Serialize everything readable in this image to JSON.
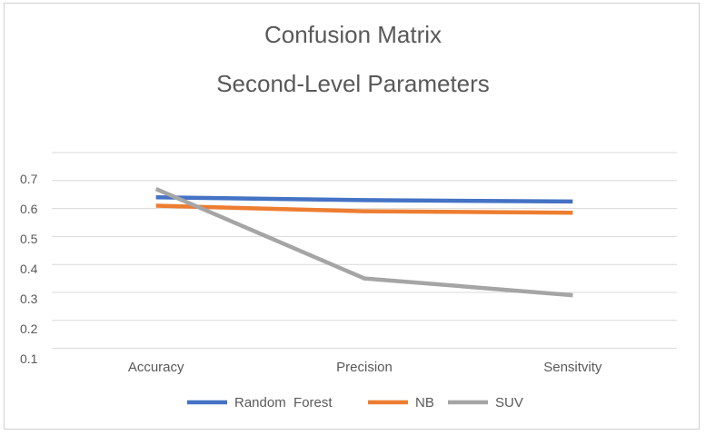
{
  "chart_data": {
    "type": "line",
    "title": "Confusion Matrix",
    "subtitle": "Second-Level Parameters",
    "categories": [
      "Accuracy",
      "Precision",
      "Sensitvity"
    ],
    "y_ticks": [
      "0.1",
      "0.2",
      "0.3",
      "0.4",
      "0.5",
      "0.6",
      "0.7"
    ],
    "series": [
      {
        "name": "Random  Forest",
        "color": "#4472C4",
        "values": [
          0.64,
          0.63,
          0.625
        ]
      },
      {
        "name": "NB",
        "color": "#ED7D31",
        "values": [
          0.61,
          0.59,
          0.585
        ]
      },
      {
        "name": "SUV",
        "color": "#A5A5A5",
        "values": [
          0.67,
          0.35,
          0.29
        ]
      }
    ],
    "ylim": [
      0.1,
      0.8
    ],
    "grid": true,
    "legend_position": "bottom"
  }
}
